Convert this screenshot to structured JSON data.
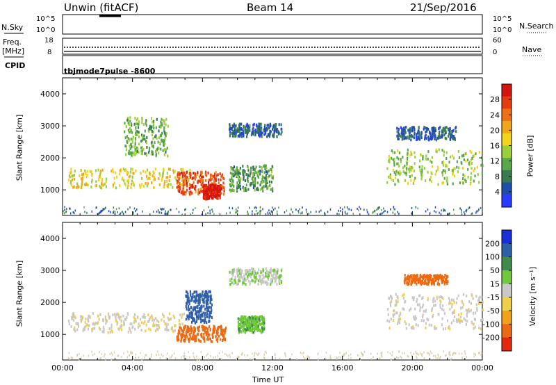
{
  "header": {
    "station": "Unwin (fitACF)",
    "beam": "Beam 14",
    "date": "21/Sep/2016"
  },
  "side_labels": {
    "nsky": "N.Sky",
    "freq": "Freq.",
    "mhz": "[MHz]",
    "cpid_label": "CPID",
    "nsearch": "N.Search",
    "nave": "Nave"
  },
  "cpid_value": "tbjmode7pulse  -8600",
  "noise_ticks": {
    "top": "10^5",
    "bottom": "10^0"
  },
  "freq_ticks": {
    "top": "18",
    "bottom": "8"
  },
  "nave_ticks": {
    "top": "60",
    "bottom": "0"
  },
  "xaxis": {
    "label": "Time UT",
    "ticks": [
      "00:00",
      "04:00",
      "08:00",
      "12:00",
      "16:00",
      "20:00",
      "00:00"
    ]
  },
  "panels": [
    {
      "name": "power",
      "ylabel": "Slant Range [km]",
      "yticks": [
        "1000",
        "2000",
        "3000",
        "4000"
      ]
    },
    {
      "name": "velocity",
      "ylabel": "Slant Range [km]",
      "yticks": [
        "1000",
        "2000",
        "3000",
        "4000"
      ]
    }
  ],
  "colorbars": {
    "power": {
      "label": "Power [dB]",
      "ticks": [
        "4",
        "8",
        "12",
        "16",
        "20",
        "24",
        "28"
      ],
      "colors": [
        "#2a3cff",
        "#1f4fa8",
        "#3a7a52",
        "#5aa64a",
        "#9ad13a",
        "#f2d21b",
        "#f2a61a",
        "#ef6f15",
        "#e63a10",
        "#d4140f"
      ]
    },
    "velocity": {
      "label": "Velocity [m s⁻¹]",
      "ticks": [
        "200",
        "100",
        "50",
        "15",
        "-15",
        "-50",
        "-100",
        "-200"
      ],
      "colors": [
        "#1a2fd6",
        "#2f5fa8",
        "#3f8c4a",
        "#6fc93a",
        "#c8c8c8",
        "#f0d04a",
        "#f2a21a",
        "#ec6a12",
        "#e4280e"
      ]
    }
  },
  "chart_data": {
    "type": "heatmap",
    "x_unit": "hours UT",
    "xlim": [
      0,
      24
    ],
    "ylim": [
      200,
      4500
    ],
    "power_regions": [
      {
        "t": [
          0.3,
          7.3
        ],
        "r": [
          1100,
          1700
        ],
        "db": 18
      },
      {
        "t": [
          6.5,
          9.2
        ],
        "r": [
          900,
          1600
        ],
        "db": 26
      },
      {
        "t": [
          8.0,
          9.0
        ],
        "r": [
          750,
          1200
        ],
        "db": 30
      },
      {
        "t": [
          9.5,
          12.0
        ],
        "r": [
          1000,
          1800
        ],
        "db": 10
      },
      {
        "t": [
          9.5,
          12.5
        ],
        "r": [
          2700,
          3100
        ],
        "db": 6
      },
      {
        "t": [
          18.5,
          24.0
        ],
        "r": [
          1200,
          2300
        ],
        "db": 14
      },
      {
        "t": [
          19.0,
          22.5
        ],
        "r": [
          2600,
          3000
        ],
        "db": 6
      },
      {
        "t": [
          3.5,
          6.0
        ],
        "r": [
          2100,
          3300
        ],
        "db": 12
      }
    ],
    "velocity_regions": [
      {
        "t": [
          0.3,
          7.0
        ],
        "r": [
          1100,
          1700
        ],
        "v": -10
      },
      {
        "t": [
          6.5,
          9.3
        ],
        "r": [
          800,
          1300
        ],
        "v": -150
      },
      {
        "t": [
          7.0,
          8.5
        ],
        "r": [
          1400,
          2400
        ],
        "v": 120
      },
      {
        "t": [
          10.0,
          11.5
        ],
        "r": [
          1100,
          1600
        ],
        "v": 40
      },
      {
        "t": [
          9.5,
          12.5
        ],
        "r": [
          2600,
          3100
        ],
        "v": 10
      },
      {
        "t": [
          18.5,
          24.0
        ],
        "r": [
          1200,
          2300
        ],
        "v": -5
      },
      {
        "t": [
          19.5,
          22.0
        ],
        "r": [
          2600,
          2900
        ],
        "v": -180
      }
    ]
  }
}
